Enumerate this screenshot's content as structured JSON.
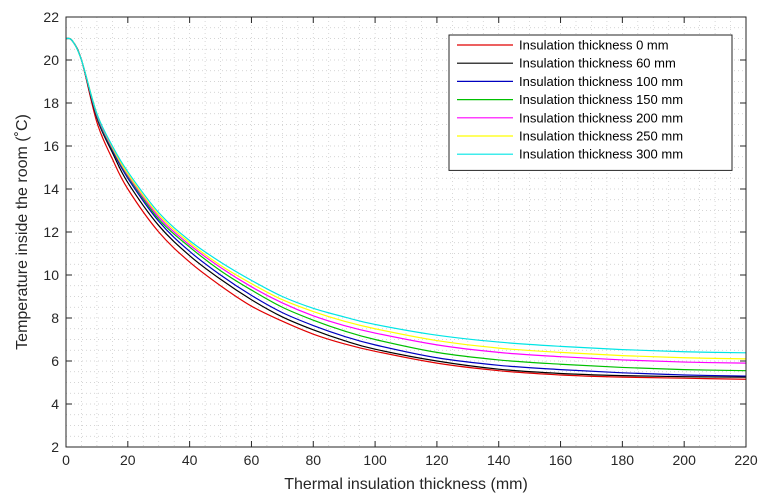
{
  "chart_data": {
    "type": "line",
    "xlabel": "Thermal insulation thickness (mm)",
    "ylabel": "Temperature inside the room (˚C)",
    "xlim": [
      0,
      220
    ],
    "ylim": [
      2,
      22
    ],
    "xticks": [
      0,
      20,
      40,
      60,
      80,
      100,
      120,
      140,
      160,
      180,
      200,
      220
    ],
    "yticks": [
      2,
      4,
      6,
      8,
      10,
      12,
      14,
      16,
      18,
      20,
      22
    ],
    "grid": "minor-dotted",
    "legend_position": "top-right",
    "x": [
      0,
      2,
      5,
      10,
      15,
      20,
      30,
      40,
      50,
      60,
      70,
      80,
      90,
      100,
      120,
      140,
      160,
      180,
      200,
      220
    ],
    "series": [
      {
        "name": "Insulation thickness 0 mm",
        "color": "#e00000",
        "values": [
          21.0,
          20.9,
          20.0,
          17.1,
          15.4,
          14.0,
          12.0,
          10.6,
          9.5,
          8.55,
          7.85,
          7.25,
          6.8,
          6.45,
          5.9,
          5.55,
          5.35,
          5.25,
          5.2,
          5.15
        ]
      },
      {
        "name": "Insulation thickness 60 mm",
        "color": "#000000",
        "values": [
          21.0,
          20.9,
          20.0,
          17.3,
          15.7,
          14.3,
          12.3,
          10.9,
          9.8,
          8.85,
          8.05,
          7.45,
          6.95,
          6.55,
          6.0,
          5.62,
          5.42,
          5.32,
          5.27,
          5.25
        ]
      },
      {
        "name": "Insulation thickness 100 mm",
        "color": "#0000c0",
        "values": [
          21.0,
          20.9,
          20.0,
          17.35,
          15.8,
          14.5,
          12.5,
          11.1,
          10.0,
          9.05,
          8.25,
          7.65,
          7.15,
          6.75,
          6.15,
          5.8,
          5.6,
          5.45,
          5.35,
          5.3
        ]
      },
      {
        "name": "Insulation thickness 150 mm",
        "color": "#00c000",
        "values": [
          21.0,
          20.9,
          20.0,
          17.4,
          15.85,
          14.6,
          12.6,
          11.3,
          10.2,
          9.3,
          8.5,
          7.9,
          7.4,
          7.0,
          6.4,
          6.05,
          5.85,
          5.7,
          5.6,
          5.55
        ]
      },
      {
        "name": "Insulation thickness 200 mm",
        "color": "#ff00ff",
        "values": [
          21.0,
          20.9,
          20.0,
          17.45,
          15.9,
          14.65,
          12.7,
          11.4,
          10.35,
          9.45,
          8.7,
          8.1,
          7.65,
          7.3,
          6.75,
          6.4,
          6.2,
          6.05,
          5.95,
          5.9
        ]
      },
      {
        "name": "Insulation thickness 250 mm",
        "color": "#ffff00",
        "values": [
          21.0,
          20.9,
          20.0,
          17.5,
          15.95,
          14.7,
          12.8,
          11.5,
          10.45,
          9.6,
          8.85,
          8.3,
          7.85,
          7.5,
          6.95,
          6.6,
          6.4,
          6.25,
          6.15,
          6.1
        ]
      },
      {
        "name": "Insulation thickness 300 mm",
        "color": "#00e5e5",
        "values": [
          21.0,
          20.9,
          20.0,
          17.5,
          16.0,
          14.8,
          12.9,
          11.6,
          10.6,
          9.75,
          9.0,
          8.45,
          8.05,
          7.7,
          7.2,
          6.88,
          6.68,
          6.53,
          6.43,
          6.38
        ]
      }
    ]
  }
}
